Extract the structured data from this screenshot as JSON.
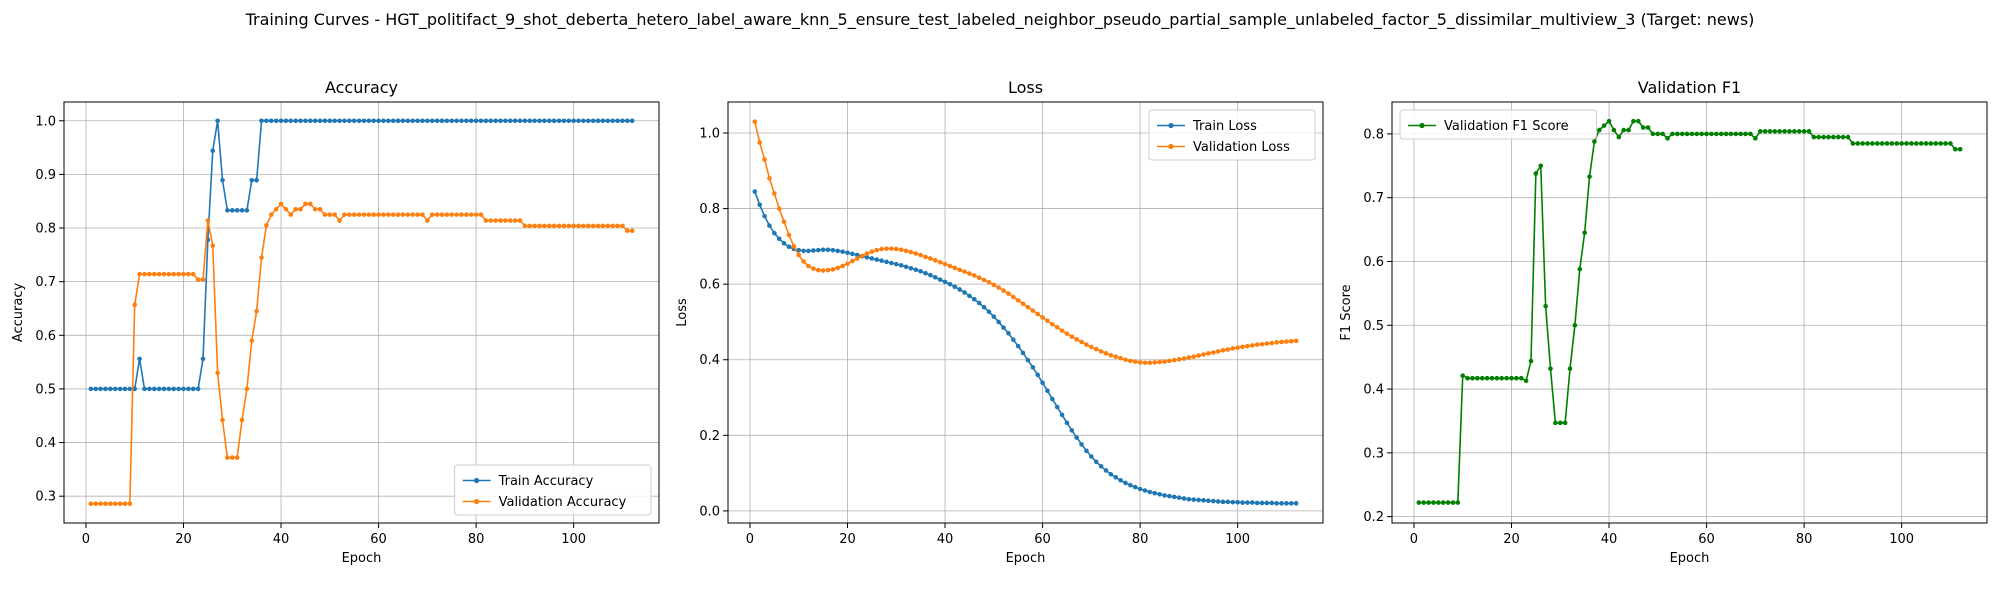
{
  "figure": {
    "suptitle": "Training Curves - HGT_politifact_9_shot_deberta_hetero_label_aware_knn_5_ensure_test_labeled_neighbor_pseudo_partial_sample_unlabeled_factor_5_dissimilar_multiview_3 (Target: news)"
  },
  "chart_data": [
    {
      "type": "line",
      "title": "Accuracy",
      "xlabel": "Epoch",
      "ylabel": "Accuracy",
      "xlim": [
        -4.5,
        117.5
      ],
      "ylim": [
        0.25,
        1.035
      ],
      "xticks": [
        0,
        20,
        40,
        60,
        80,
        100
      ],
      "yticks": [
        0.3,
        0.4,
        0.5,
        0.6,
        0.7,
        0.8,
        0.9,
        1.0
      ],
      "grid": true,
      "legend": "lower right",
      "series": [
        {
          "name": "Train Accuracy",
          "color": "#1f77b4",
          "x_start": 1,
          "values": [
            0.5,
            0.5,
            0.5,
            0.5,
            0.5,
            0.5,
            0.5,
            0.5,
            0.5,
            0.5,
            0.556,
            0.5,
            0.5,
            0.5,
            0.5,
            0.5,
            0.5,
            0.5,
            0.5,
            0.5,
            0.5,
            0.5,
            0.5,
            0.556,
            0.778,
            0.944,
            1.0,
            0.889,
            0.833,
            0.833,
            0.833,
            0.833,
            0.833,
            0.889,
            0.889,
            1.0,
            1.0,
            1.0,
            1.0,
            1.0,
            1.0,
            1.0,
            1.0,
            1.0,
            1.0,
            1.0,
            1.0,
            1.0,
            1.0,
            1.0,
            1.0,
            1.0,
            1.0,
            1.0,
            1.0,
            1.0,
            1.0,
            1.0,
            1.0,
            1.0,
            1.0,
            1.0,
            1.0,
            1.0,
            1.0,
            1.0,
            1.0,
            1.0,
            1.0,
            1.0,
            1.0,
            1.0,
            1.0,
            1.0,
            1.0,
            1.0,
            1.0,
            1.0,
            1.0,
            1.0,
            1.0,
            1.0,
            1.0,
            1.0,
            1.0,
            1.0,
            1.0,
            1.0,
            1.0,
            1.0,
            1.0,
            1.0,
            1.0,
            1.0,
            1.0,
            1.0,
            1.0,
            1.0,
            1.0,
            1.0,
            1.0,
            1.0,
            1.0,
            1.0,
            1.0,
            1.0,
            1.0,
            1.0,
            1.0,
            1.0,
            1.0,
            1.0
          ]
        },
        {
          "name": "Validation Accuracy",
          "color": "#ff7f0e",
          "x_start": 1,
          "values": [
            0.286,
            0.286,
            0.286,
            0.286,
            0.286,
            0.286,
            0.286,
            0.286,
            0.286,
            0.657,
            0.714,
            0.714,
            0.714,
            0.714,
            0.714,
            0.714,
            0.714,
            0.714,
            0.714,
            0.714,
            0.714,
            0.714,
            0.704,
            0.704,
            0.814,
            0.767,
            0.53,
            0.442,
            0.372,
            0.372,
            0.372,
            0.442,
            0.5,
            0.59,
            0.645,
            0.745,
            0.805,
            0.825,
            0.835,
            0.845,
            0.835,
            0.825,
            0.835,
            0.835,
            0.845,
            0.845,
            0.835,
            0.835,
            0.825,
            0.825,
            0.825,
            0.814,
            0.825,
            0.825,
            0.825,
            0.825,
            0.825,
            0.825,
            0.825,
            0.825,
            0.825,
            0.825,
            0.825,
            0.825,
            0.825,
            0.825,
            0.825,
            0.825,
            0.825,
            0.814,
            0.825,
            0.825,
            0.825,
            0.825,
            0.825,
            0.825,
            0.825,
            0.825,
            0.825,
            0.825,
            0.825,
            0.814,
            0.814,
            0.814,
            0.814,
            0.814,
            0.814,
            0.814,
            0.814,
            0.804,
            0.804,
            0.804,
            0.804,
            0.804,
            0.804,
            0.804,
            0.804,
            0.804,
            0.804,
            0.804,
            0.804,
            0.804,
            0.804,
            0.804,
            0.804,
            0.804,
            0.804,
            0.804,
            0.804,
            0.804,
            0.795,
            0.795
          ]
        }
      ]
    },
    {
      "type": "line",
      "title": "Loss",
      "xlabel": "Epoch",
      "ylabel": "Loss",
      "xlim": [
        -4.5,
        117.5
      ],
      "ylim": [
        -0.032,
        1.082
      ],
      "xticks": [
        0,
        20,
        40,
        60,
        80,
        100
      ],
      "yticks": [
        0.0,
        0.2,
        0.4,
        0.6,
        0.8,
        1.0
      ],
      "grid": true,
      "legend": "upper right",
      "series": [
        {
          "name": "Train Loss",
          "color": "#1f77b4",
          "x_start": 1,
          "values": [
            0.845,
            0.81,
            0.78,
            0.755,
            0.735,
            0.72,
            0.708,
            0.699,
            0.693,
            0.69,
            0.688,
            0.688,
            0.689,
            0.69,
            0.691,
            0.691,
            0.69,
            0.688,
            0.686,
            0.683,
            0.68,
            0.677,
            0.674,
            0.671,
            0.668,
            0.665,
            0.662,
            0.659,
            0.656,
            0.653,
            0.65,
            0.646,
            0.642,
            0.638,
            0.634,
            0.629,
            0.624,
            0.618,
            0.612,
            0.606,
            0.6,
            0.593,
            0.586,
            0.578,
            0.569,
            0.56,
            0.55,
            0.539,
            0.527,
            0.514,
            0.5,
            0.485,
            0.47,
            0.453,
            0.436,
            0.418,
            0.399,
            0.38,
            0.36,
            0.339,
            0.318,
            0.296,
            0.275,
            0.254,
            0.233,
            0.213,
            0.194,
            0.176,
            0.159,
            0.144,
            0.13,
            0.118,
            0.107,
            0.097,
            0.089,
            0.081,
            0.074,
            0.068,
            0.063,
            0.058,
            0.054,
            0.05,
            0.047,
            0.044,
            0.041,
            0.039,
            0.037,
            0.035,
            0.033,
            0.031,
            0.03,
            0.029,
            0.028,
            0.027,
            0.026,
            0.025,
            0.024,
            0.024,
            0.023,
            0.023,
            0.022,
            0.022,
            0.022,
            0.021,
            0.021,
            0.021,
            0.021,
            0.02,
            0.02,
            0.02,
            0.02,
            0.02
          ]
        },
        {
          "name": "Validation Loss",
          "color": "#ff7f0e",
          "x_start": 1,
          "values": [
            1.03,
            0.975,
            0.93,
            0.88,
            0.84,
            0.8,
            0.765,
            0.73,
            0.7,
            0.677,
            0.66,
            0.648,
            0.641,
            0.637,
            0.636,
            0.637,
            0.639,
            0.643,
            0.648,
            0.654,
            0.661,
            0.668,
            0.675,
            0.681,
            0.686,
            0.69,
            0.693,
            0.694,
            0.694,
            0.693,
            0.691,
            0.688,
            0.685,
            0.681,
            0.677,
            0.672,
            0.668,
            0.663,
            0.658,
            0.653,
            0.648,
            0.643,
            0.638,
            0.633,
            0.628,
            0.623,
            0.617,
            0.611,
            0.605,
            0.598,
            0.591,
            0.583,
            0.575,
            0.566,
            0.557,
            0.548,
            0.539,
            0.53,
            0.521,
            0.512,
            0.503,
            0.494,
            0.486,
            0.477,
            0.469,
            0.461,
            0.454,
            0.447,
            0.44,
            0.434,
            0.428,
            0.422,
            0.417,
            0.412,
            0.408,
            0.404,
            0.4,
            0.397,
            0.395,
            0.393,
            0.392,
            0.392,
            0.393,
            0.394,
            0.395,
            0.397,
            0.399,
            0.401,
            0.403,
            0.406,
            0.408,
            0.411,
            0.414,
            0.417,
            0.419,
            0.422,
            0.425,
            0.427,
            0.43,
            0.432,
            0.434,
            0.436,
            0.438,
            0.44,
            0.441,
            0.443,
            0.444,
            0.446,
            0.447,
            0.448,
            0.449,
            0.45
          ]
        }
      ]
    },
    {
      "type": "line",
      "title": "Validation F1",
      "xlabel": "Epoch",
      "ylabel": "F1 Score",
      "xlim": [
        -4.5,
        117.5
      ],
      "ylim": [
        0.19,
        0.85
      ],
      "xticks": [
        0,
        20,
        40,
        60,
        80,
        100
      ],
      "yticks": [
        0.2,
        0.3,
        0.4,
        0.5,
        0.6,
        0.7,
        0.8
      ],
      "grid": true,
      "legend": "upper left",
      "series": [
        {
          "name": "Validation F1 Score",
          "color": "#008000",
          "x_start": 1,
          "values": [
            0.222,
            0.222,
            0.222,
            0.222,
            0.222,
            0.222,
            0.222,
            0.222,
            0.222,
            0.421,
            0.417,
            0.417,
            0.417,
            0.417,
            0.417,
            0.417,
            0.417,
            0.417,
            0.417,
            0.417,
            0.417,
            0.417,
            0.413,
            0.444,
            0.738,
            0.75,
            0.53,
            0.432,
            0.347,
            0.347,
            0.347,
            0.432,
            0.5,
            0.588,
            0.645,
            0.733,
            0.788,
            0.806,
            0.813,
            0.82,
            0.806,
            0.795,
            0.806,
            0.806,
            0.82,
            0.82,
            0.81,
            0.81,
            0.8,
            0.8,
            0.8,
            0.793,
            0.8,
            0.8,
            0.8,
            0.8,
            0.8,
            0.8,
            0.8,
            0.8,
            0.8,
            0.8,
            0.8,
            0.8,
            0.8,
            0.8,
            0.8,
            0.8,
            0.8,
            0.793,
            0.804,
            0.804,
            0.804,
            0.804,
            0.804,
            0.804,
            0.804,
            0.804,
            0.804,
            0.804,
            0.804,
            0.795,
            0.795,
            0.795,
            0.795,
            0.795,
            0.795,
            0.795,
            0.795,
            0.785,
            0.785,
            0.785,
            0.785,
            0.785,
            0.785,
            0.785,
            0.785,
            0.785,
            0.785,
            0.785,
            0.785,
            0.785,
            0.785,
            0.785,
            0.785,
            0.785,
            0.785,
            0.785,
            0.785,
            0.785,
            0.776,
            0.776
          ]
        }
      ]
    }
  ]
}
